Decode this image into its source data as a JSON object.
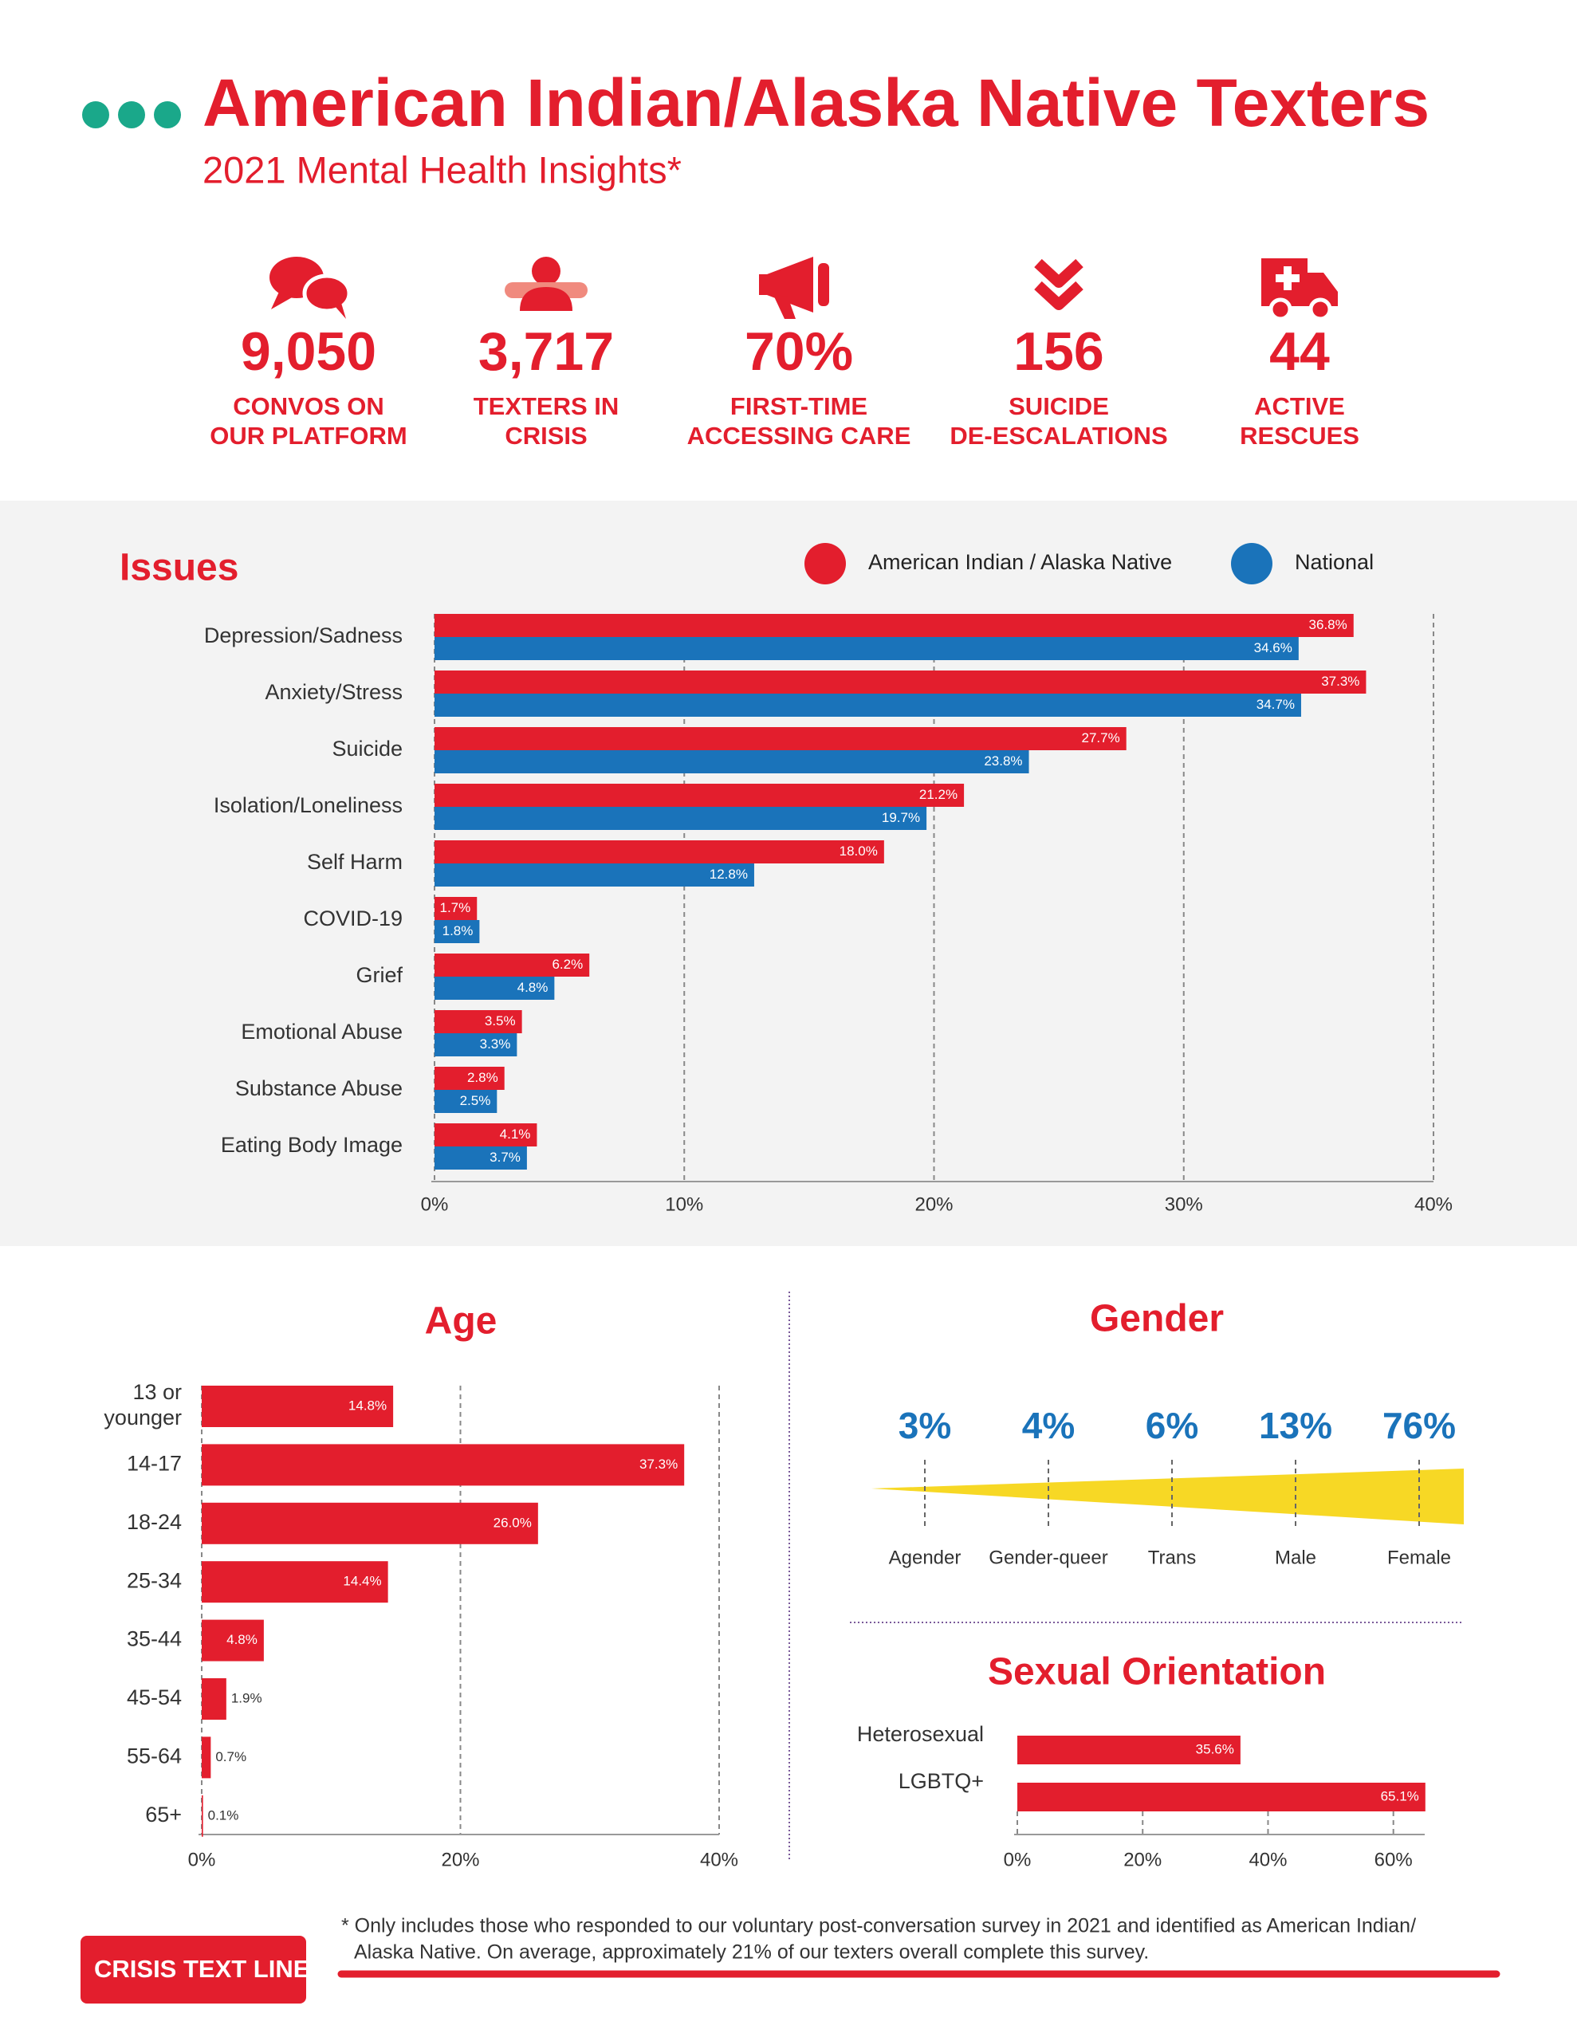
{
  "header": {
    "title": "American Indian/Alaska Native Texters",
    "subtitle": "2021 Mental Health Insights*"
  },
  "stats": [
    {
      "value": "9,050",
      "label": [
        "CONVOS ON",
        "OUR PLATFORM"
      ]
    },
    {
      "value": "3,717",
      "label": [
        "TEXTERS IN",
        "CRISIS"
      ]
    },
    {
      "value": "70%",
      "label": [
        "FIRST-TIME",
        "ACCESSING CARE"
      ]
    },
    {
      "value": "156",
      "label": [
        "SUICIDE",
        "DE-ESCALATIONS"
      ]
    },
    {
      "value": "44",
      "label": [
        "ACTIVE",
        "RESCUES"
      ]
    }
  ],
  "chart_data": [
    {
      "type": "bar",
      "title": "Issues",
      "categories": [
        "Depression/Sadness",
        "Anxiety/Stress",
        "Suicide",
        "Isolation/Loneliness",
        "Self Harm",
        "COVID-19",
        "Grief",
        "Emotional Abuse",
        "Substance Abuse",
        "Eating Body Image"
      ],
      "series": [
        {
          "name": "American Indian / Alaska Native",
          "color": "#e31e2d",
          "values": [
            36.8,
            37.3,
            27.7,
            21.2,
            18.0,
            1.7,
            6.2,
            3.5,
            2.8,
            4.1
          ],
          "value_labels": [
            "36.8%",
            "37.3%",
            "27.7%",
            "21.2%",
            "18.0%",
            "1.7%",
            "6.2%",
            "3.5%",
            "2.8%",
            "4.1%"
          ]
        },
        {
          "name": "National",
          "color": "#1a73ba",
          "values": [
            34.6,
            34.7,
            23.8,
            19.7,
            12.8,
            1.8,
            4.8,
            3.3,
            2.5,
            3.7
          ],
          "value_labels": [
            "34.6%",
            "34.7%",
            "23.8%",
            "19.7%",
            "12.8%",
            "1.8%",
            "4.8%",
            "3.3%",
            "2.5%",
            "3.7%"
          ]
        }
      ],
      "xlim": [
        0,
        40
      ],
      "xticks": [
        {
          "value": 0,
          "label": "0%"
        },
        {
          "value": 10,
          "label": "10%"
        },
        {
          "value": 20,
          "label": "20%"
        },
        {
          "value": 30,
          "label": "30%"
        },
        {
          "value": 40,
          "label": "40%"
        }
      ],
      "grid": true,
      "legend": "top"
    },
    {
      "type": "bar",
      "title": "Age",
      "categories": [
        "13 or younger",
        "14-17",
        "18-24",
        "25-34",
        "35-44",
        "45-54",
        "55-64",
        "65+"
      ],
      "values": [
        14.8,
        37.3,
        26.0,
        14.4,
        4.8,
        1.9,
        0.7,
        0.1
      ],
      "value_labels": [
        "14.8%",
        "37.3%",
        "26.0%",
        "14.4%",
        "4.8%",
        "1.9%",
        "0.7%",
        "0.1%"
      ],
      "color": "#e31e2d",
      "xlim": [
        0,
        40
      ],
      "xticks": [
        {
          "value": 0,
          "label": "0%"
        },
        {
          "value": 20,
          "label": "20%"
        },
        {
          "value": 40,
          "label": "40%"
        }
      ],
      "grid": true
    },
    {
      "type": "wedge",
      "title": "Gender",
      "categories": [
        "Agender",
        "Gender-queer",
        "Trans",
        "Male",
        "Female"
      ],
      "values": [
        3,
        4,
        6,
        13,
        76
      ],
      "value_labels": [
        "3%",
        "4%",
        "6%",
        "13%",
        "76%"
      ],
      "color": "#1a73ba"
    },
    {
      "type": "bar",
      "title": "Sexual Orientation",
      "categories": [
        "Heterosexual",
        "LGBTQ+"
      ],
      "values": [
        35.6,
        65.1
      ],
      "value_labels": [
        "35.6%",
        "65.1%"
      ],
      "color": "#e31e2d",
      "xlim": [
        0,
        65
      ],
      "xticks": [
        {
          "value": 0,
          "label": "0%"
        },
        {
          "value": 20,
          "label": "20%"
        },
        {
          "value": 40,
          "label": "40%"
        },
        {
          "value": 60,
          "label": "60%"
        }
      ],
      "grid": true
    }
  ],
  "footer": {
    "logo": "CRISIS TEXT LINE |",
    "note": [
      "* Only includes those who responded to our voluntary post-conversation survey in 2021 and identified as American Indian/",
      "Alaska Native. On average, approximately 21% of our texters overall complete this survey."
    ]
  }
}
